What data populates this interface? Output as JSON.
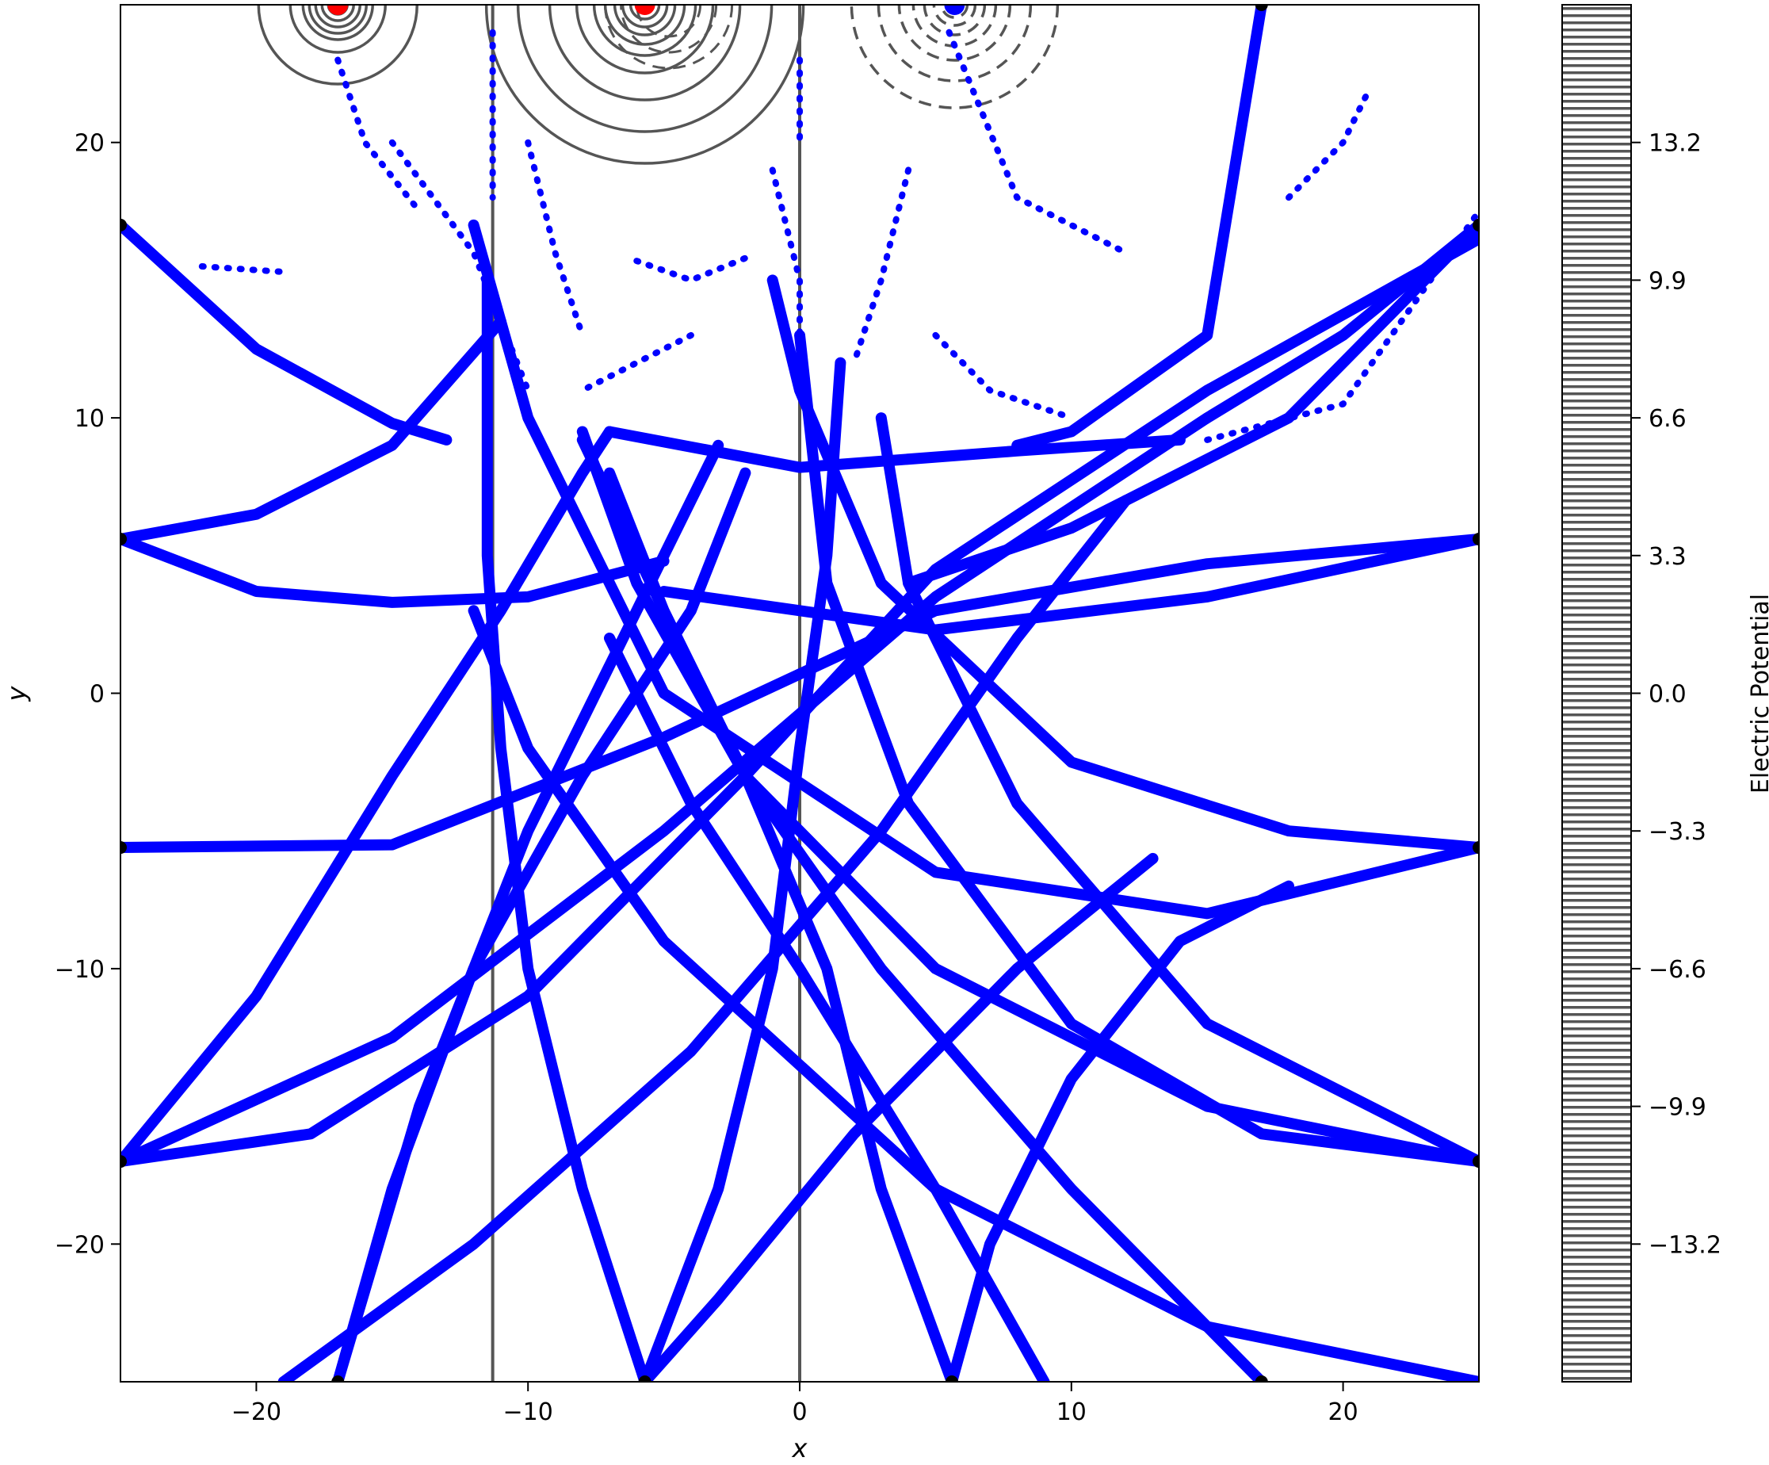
{
  "chart_data": {
    "type": "scatter",
    "xlabel": "x",
    "ylabel": "y",
    "xlim": [
      -25,
      25
    ],
    "ylim": [
      -25,
      25
    ],
    "x_ticks": [
      -20,
      -10,
      0,
      10,
      20
    ],
    "y_ticks": [
      -20,
      -10,
      0,
      10,
      20
    ],
    "colorbar": {
      "label": "Electric Potential",
      "range": [
        -16.5,
        16.5
      ],
      "ticks": [
        "−13.2",
        "−9.9",
        "−6.6",
        "−3.3",
        "0.0",
        "3.3",
        "6.6",
        "9.9",
        "13.2"
      ],
      "tick_values": [
        -13.2,
        -9.9,
        -6.6,
        -3.3,
        0.0,
        3.3,
        6.6,
        9.9,
        13.2
      ]
    },
    "charges": [
      {
        "x": -17.0,
        "y": 25,
        "sign": "positive",
        "color": "#ff0000"
      },
      {
        "x": -5.7,
        "y": 25,
        "sign": "positive",
        "color": "#ff0000"
      },
      {
        "x": 5.7,
        "y": 25,
        "sign": "negative",
        "color": "#0000ff"
      }
    ],
    "conductor_lines_x": [
      -11.3,
      0
    ],
    "boundary_markers": [
      [
        -25,
        17
      ],
      [
        -25,
        5.6
      ],
      [
        -25,
        -5.6
      ],
      [
        -25,
        -17
      ],
      [
        25,
        17
      ],
      [
        25,
        5.6
      ],
      [
        25,
        -5.6
      ],
      [
        25,
        -17
      ],
      [
        -17,
        -25
      ],
      [
        -5.7,
        -25
      ],
      [
        5.6,
        -25
      ],
      [
        17,
        -25
      ],
      [
        17,
        25
      ]
    ],
    "field_lines": [
      {
        "points": [
          [
            -25,
            17
          ],
          [
            -20,
            12.5
          ],
          [
            -15,
            9.8
          ],
          [
            -13,
            9.2
          ]
        ]
      },
      {
        "points": [
          [
            -25,
            5.6
          ],
          [
            -20,
            3.7
          ],
          [
            -15,
            3.3
          ],
          [
            -10,
            3.5
          ],
          [
            -5,
            4.8
          ]
        ]
      },
      {
        "points": [
          [
            -25,
            -5.6
          ],
          [
            -15,
            -5.5
          ],
          [
            -5,
            -1.6
          ],
          [
            5,
            3.0
          ],
          [
            15,
            4.7
          ],
          [
            25,
            5.6
          ]
        ]
      },
      {
        "points": [
          [
            -25,
            -17
          ],
          [
            -15,
            -12.5
          ],
          [
            -5,
            -5
          ],
          [
            5,
            3.5
          ],
          [
            15,
            10
          ],
          [
            20,
            13
          ],
          [
            25,
            17
          ]
        ]
      },
      {
        "points": [
          [
            -25,
            -17
          ],
          [
            -18,
            -16
          ],
          [
            -10,
            -11
          ],
          [
            -2,
            -3
          ],
          [
            5,
            4.5
          ],
          [
            15,
            11
          ],
          [
            25,
            16.5
          ]
        ]
      },
      {
        "points": [
          [
            -25,
            -17
          ],
          [
            -20,
            -11
          ],
          [
            -15,
            -3
          ],
          [
            -11,
            3
          ],
          [
            -8,
            8
          ],
          [
            -7,
            9.5
          ]
        ]
      },
      {
        "points": [
          [
            -25,
            5.6
          ],
          [
            -20,
            6.5
          ],
          [
            -15,
            9
          ],
          [
            -11,
            13.5
          ]
        ]
      },
      {
        "points": [
          [
            -22,
            15.5
          ],
          [
            -19,
            15.3
          ]
        ]
      },
      {
        "points": [
          [
            -5,
            3.7
          ],
          [
            5,
            2.3
          ],
          [
            15,
            3.5
          ],
          [
            25,
            5.6
          ]
        ]
      },
      {
        "points": [
          [
            -7,
            9.5
          ],
          [
            0,
            8.2
          ],
          [
            8,
            8.8
          ],
          [
            14,
            9.2
          ]
        ]
      },
      {
        "points": [
          [
            15,
            9.2
          ],
          [
            20,
            10.5
          ],
          [
            25,
            17.5
          ]
        ]
      },
      {
        "points": [
          [
            25,
            -5.6
          ],
          [
            18,
            -5
          ],
          [
            10,
            -2.5
          ],
          [
            3,
            4
          ],
          [
            0,
            11
          ],
          [
            -1,
            15
          ]
        ]
      },
      {
        "points": [
          [
            25,
            -5.6
          ],
          [
            15,
            -8
          ],
          [
            5,
            -6.5
          ],
          [
            -5,
            0
          ],
          [
            -10,
            10
          ],
          [
            -12,
            17
          ]
        ]
      },
      {
        "points": [
          [
            25,
            -17
          ],
          [
            15,
            -15
          ],
          [
            5,
            -10
          ],
          [
            -2,
            -3
          ],
          [
            -6,
            4
          ],
          [
            -8,
            9.5
          ]
        ]
      },
      {
        "points": [
          [
            25,
            -17
          ],
          [
            17,
            -16
          ],
          [
            10,
            -12
          ],
          [
            4,
            -4
          ],
          [
            1,
            4
          ],
          [
            0,
            13
          ]
        ]
      },
      {
        "points": [
          [
            25,
            -17
          ],
          [
            15,
            -12
          ],
          [
            8,
            -4
          ],
          [
            4,
            4
          ],
          [
            3,
            10
          ]
        ]
      },
      {
        "points": [
          [
            25,
            -25
          ],
          [
            15,
            -23
          ],
          [
            5,
            -18
          ],
          [
            -5,
            -9
          ],
          [
            -10,
            -2
          ],
          [
            -12,
            3
          ]
        ]
      },
      {
        "points": [
          [
            17,
            -25
          ],
          [
            10,
            -18
          ],
          [
            3,
            -10
          ],
          [
            -2,
            -3
          ],
          [
            -5,
            3
          ],
          [
            -7,
            8
          ]
        ]
      },
      {
        "points": [
          [
            -5.7,
            -25
          ],
          [
            -8,
            -18
          ],
          [
            -10,
            -10
          ],
          [
            -11,
            -2
          ],
          [
            -11.5,
            5
          ],
          [
            -11.5,
            15
          ]
        ]
      },
      {
        "points": [
          [
            -5.7,
            -25
          ],
          [
            -3,
            -18
          ],
          [
            -1,
            -10
          ],
          [
            0,
            -2
          ],
          [
            1,
            5
          ],
          [
            1.5,
            12
          ]
        ]
      },
      {
        "points": [
          [
            5.6,
            -25
          ],
          [
            3,
            -18
          ],
          [
            1,
            -10
          ],
          [
            -2,
            -3
          ],
          [
            -5,
            3
          ],
          [
            -8,
            9.2
          ]
        ]
      },
      {
        "points": [
          [
            -17,
            -25
          ],
          [
            -15,
            -18
          ],
          [
            -12,
            -10
          ],
          [
            -8,
            -3
          ],
          [
            -4,
            3
          ],
          [
            -2,
            8
          ]
        ]
      },
      {
        "points": [
          [
            -17,
            -25
          ],
          [
            -14,
            -15
          ],
          [
            -10,
            -5
          ],
          [
            -6,
            3
          ],
          [
            -3,
            9
          ]
        ]
      },
      {
        "points": [
          [
            -19,
            -25
          ],
          [
            -12,
            -20
          ],
          [
            -4,
            -13
          ],
          [
            3,
            -5
          ],
          [
            8,
            2
          ],
          [
            12,
            7
          ]
        ]
      },
      {
        "points": [
          [
            -5.7,
            -25
          ],
          [
            -3,
            -22
          ],
          [
            2,
            -16
          ],
          [
            8,
            -10
          ],
          [
            13,
            -6
          ]
        ]
      },
      {
        "points": [
          [
            5.6,
            -25
          ],
          [
            7,
            -20
          ],
          [
            10,
            -14
          ],
          [
            14,
            -9
          ],
          [
            18,
            -7
          ]
        ]
      },
      {
        "points": [
          [
            9,
            -25
          ],
          [
            5,
            -18
          ],
          [
            0,
            -10
          ],
          [
            -4,
            -4
          ],
          [
            -7,
            2
          ]
        ]
      },
      {
        "points": [
          [
            25,
            17
          ],
          [
            18,
            10
          ],
          [
            10,
            6
          ],
          [
            4,
            4
          ]
        ]
      },
      {
        "points": [
          [
            17,
            25
          ],
          [
            15,
            13
          ],
          [
            10,
            9.5
          ],
          [
            8,
            9
          ]
        ]
      },
      {
        "points": [
          [
            -17,
            23
          ],
          [
            -16,
            20
          ],
          [
            -14,
            17.5
          ]
        ]
      },
      {
        "points": [
          [
            -15,
            20
          ],
          [
            -12,
            16
          ],
          [
            -10,
            11
          ]
        ]
      },
      {
        "points": [
          [
            -10,
            20
          ],
          [
            -9,
            16
          ],
          [
            -8,
            13
          ]
        ]
      },
      {
        "points": [
          [
            -6,
            15.7
          ],
          [
            -4,
            15
          ],
          [
            -2,
            15.8
          ]
        ]
      },
      {
        "points": [
          [
            -1,
            19
          ],
          [
            0,
            15
          ],
          [
            0,
            12
          ]
        ]
      },
      {
        "points": [
          [
            4,
            19
          ],
          [
            3,
            15
          ],
          [
            2,
            12
          ]
        ]
      },
      {
        "points": [
          [
            5.5,
            24
          ],
          [
            8,
            18
          ],
          [
            12,
            16
          ]
        ]
      },
      {
        "points": [
          [
            18,
            18
          ],
          [
            20,
            20
          ],
          [
            21,
            22
          ]
        ]
      },
      {
        "points": [
          [
            0,
            23
          ],
          [
            0,
            20
          ]
        ]
      },
      {
        "points": [
          [
            -11.3,
            24
          ],
          [
            -11.3,
            18
          ]
        ]
      },
      {
        "points": [
          [
            5,
            13
          ],
          [
            7,
            11
          ],
          [
            10,
            10
          ]
        ]
      },
      {
        "points": [
          [
            -4,
            13
          ],
          [
            -6,
            12
          ],
          [
            -8,
            11
          ]
        ]
      }
    ]
  }
}
